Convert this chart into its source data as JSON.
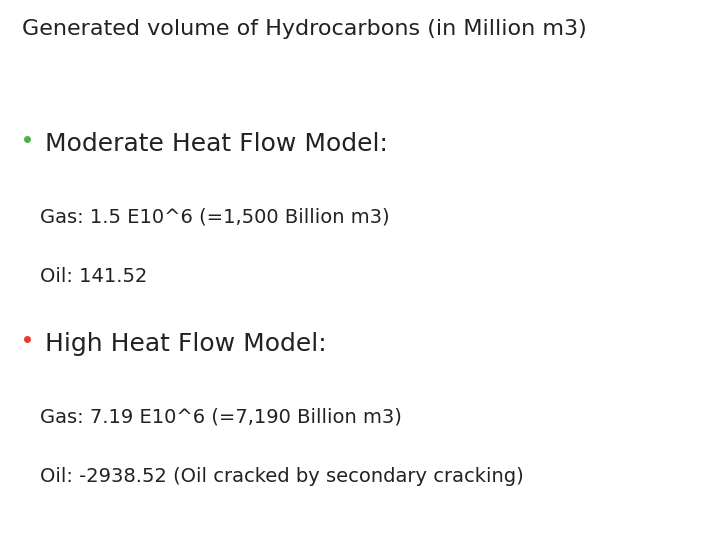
{
  "title": "Generated volume of Hydrocarbons (in Million m3)",
  "title_fontsize": 16,
  "title_color": "#222222",
  "background_color": "#ffffff",
  "bullet1_label": "Moderate Heat Flow Model:",
  "bullet1_dot_color": "#4caf50",
  "bullet1_line1": "Gas: 1.5 E10^6 (=1,500 Billion m3)",
  "bullet1_line2": "Oil: 141.52",
  "bullet2_label": "High Heat Flow Model:",
  "bullet2_dot_color": "#e53935",
  "bullet2_line1": "Gas: 7.19 E10^6 (=7,190 Billion m3)",
  "bullet2_line2": "Oil: -2938.52 (Oil cracked by secondary cracking)",
  "bullet_fontsize": 18,
  "body_fontsize": 14,
  "text_color": "#222222"
}
